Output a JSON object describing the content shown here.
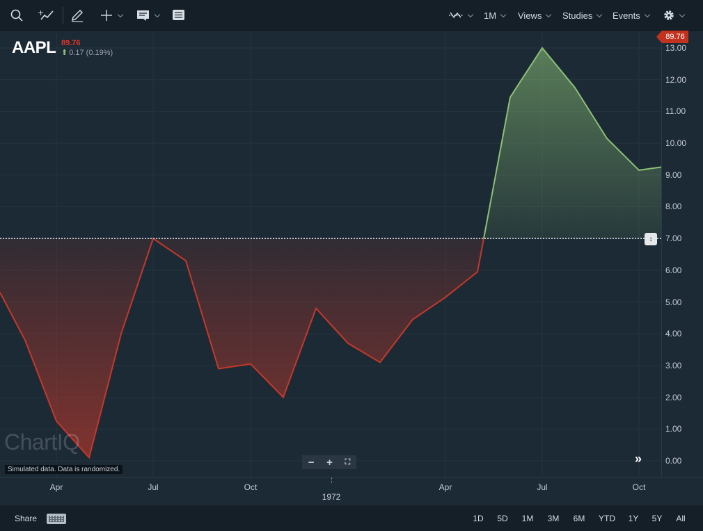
{
  "toolbar": {
    "icons": [
      "search-icon",
      "add-comparison-icon",
      "draw-icon",
      "crosshair-icon",
      "info-panel-icon",
      "table-view-icon",
      "chart-type-icon",
      "settings-icon"
    ],
    "periodicity_label": "1M",
    "views_label": "Views",
    "studies_label": "Studies",
    "events_label": "Events"
  },
  "quote": {
    "symbol": "AAPL",
    "price": "89.76",
    "change": "0.17 (0.19%)",
    "change_direction": "up",
    "price_tag": "89.76"
  },
  "yaxis": {
    "labels": [
      "13.00",
      "12.00",
      "11.00",
      "10.00",
      "9.00",
      "8.00",
      "7.00",
      "6.00",
      "5.00",
      "4.00",
      "3.00",
      "2.00",
      "1.00",
      "0.00"
    ]
  },
  "xaxis": {
    "labels": [
      "Apr",
      "Jul",
      "Oct",
      "Apr",
      "Jul",
      "Oct"
    ],
    "year_label": "1972"
  },
  "watermark": "ChartIQ",
  "disclaimer": "Simulated data.  Data is randomized.",
  "footer": {
    "share_label": "Share",
    "periods": [
      "1D",
      "5D",
      "1M",
      "3M",
      "6M",
      "YTD",
      "1Y",
      "5Y",
      "All"
    ]
  },
  "colors": {
    "background": "#1c2a35",
    "toolbar": "#151f28",
    "below_line": "#c5382a",
    "above_line": "#8cc176",
    "price_tag": "#c2321f"
  },
  "chart_data": {
    "type": "area",
    "baseline": 7.0,
    "ylim": [
      0,
      13
    ],
    "x_ticks": [
      "Apr",
      "Jul",
      "Oct",
      "1972",
      "Apr",
      "Jul",
      "Oct"
    ],
    "series": [
      {
        "values": [
          5.3,
          3.8,
          1.25,
          0.1,
          4.0,
          7.0,
          6.3,
          2.9,
          3.05,
          2.0,
          4.8,
          3.7,
          3.1,
          4.45,
          5.15,
          5.95,
          7.0,
          11.45,
          13.0,
          11.75,
          10.15,
          9.15,
          9.25
        ]
      }
    ]
  }
}
